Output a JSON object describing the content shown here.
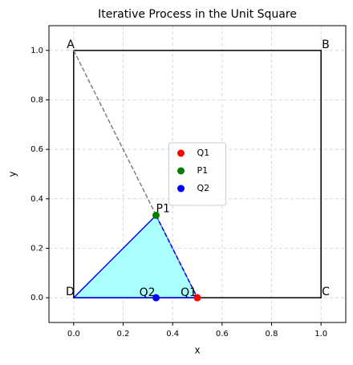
{
  "chart_data": {
    "type": "scatter",
    "title": "Iterative Process in the Unit Square",
    "xlabel": "x",
    "ylabel": "y",
    "xlim": [
      -0.1,
      1.1
    ],
    "ylim": [
      -0.1,
      1.1
    ],
    "xticks": [
      {
        "value": 0,
        "label": "0.0"
      },
      {
        "value": 0.2,
        "label": "0.2"
      },
      {
        "value": 0.4,
        "label": "0.4"
      },
      {
        "value": 0.6,
        "label": "0.6"
      },
      {
        "value": 0.8,
        "label": "0.8"
      },
      {
        "value": 1,
        "label": "1.0"
      }
    ],
    "yticks": [
      {
        "value": 0,
        "label": "0.0"
      },
      {
        "value": 0.2,
        "label": "0.2"
      },
      {
        "value": 0.4,
        "label": "0.4"
      },
      {
        "value": 0.6,
        "label": "0.6"
      },
      {
        "value": 0.8,
        "label": "0.8"
      },
      {
        "value": 1,
        "label": "1.0"
      }
    ],
    "grid": true,
    "legend": "center",
    "square": {
      "x": [
        0,
        1,
        1,
        0,
        0
      ],
      "y": [
        1,
        1,
        0,
        0,
        1
      ],
      "color": "#000000"
    },
    "vertices": [
      {
        "label": "A",
        "x": 0,
        "y": 1
      },
      {
        "label": "B",
        "x": 1,
        "y": 1
      },
      {
        "label": "C",
        "x": 1,
        "y": 0
      },
      {
        "label": "D",
        "x": 0,
        "y": 0
      }
    ],
    "triangle": {
      "x": [
        0,
        0.333,
        0.5
      ],
      "y": [
        0,
        0.333,
        0
      ],
      "color": "#aaffff"
    },
    "segments": [
      {
        "x": [
          0,
          0.5
        ],
        "y": [
          1,
          0
        ],
        "color": "#808080",
        "dashed": true
      },
      {
        "x": [
          0,
          0.333
        ],
        "y": [
          0,
          0.333
        ],
        "color": "#0000ff",
        "dashed": false
      },
      {
        "x": [
          0.333,
          0.5
        ],
        "y": [
          0.333,
          0
        ],
        "color": "#0000ff",
        "dashed": true
      },
      {
        "x": [
          0,
          0.5
        ],
        "y": [
          0,
          0
        ],
        "color": "#0000ff",
        "dashed": false
      }
    ],
    "series": [
      {
        "name": "Q1",
        "color": "#ff0000",
        "x": [
          0.5
        ],
        "values": [
          0
        ]
      },
      {
        "name": "P1",
        "color": "#008000",
        "x": [
          0.333
        ],
        "values": [
          0.333
        ]
      },
      {
        "name": "Q2",
        "color": "#0000ff",
        "x": [
          0.333
        ],
        "values": [
          0
        ]
      }
    ]
  }
}
